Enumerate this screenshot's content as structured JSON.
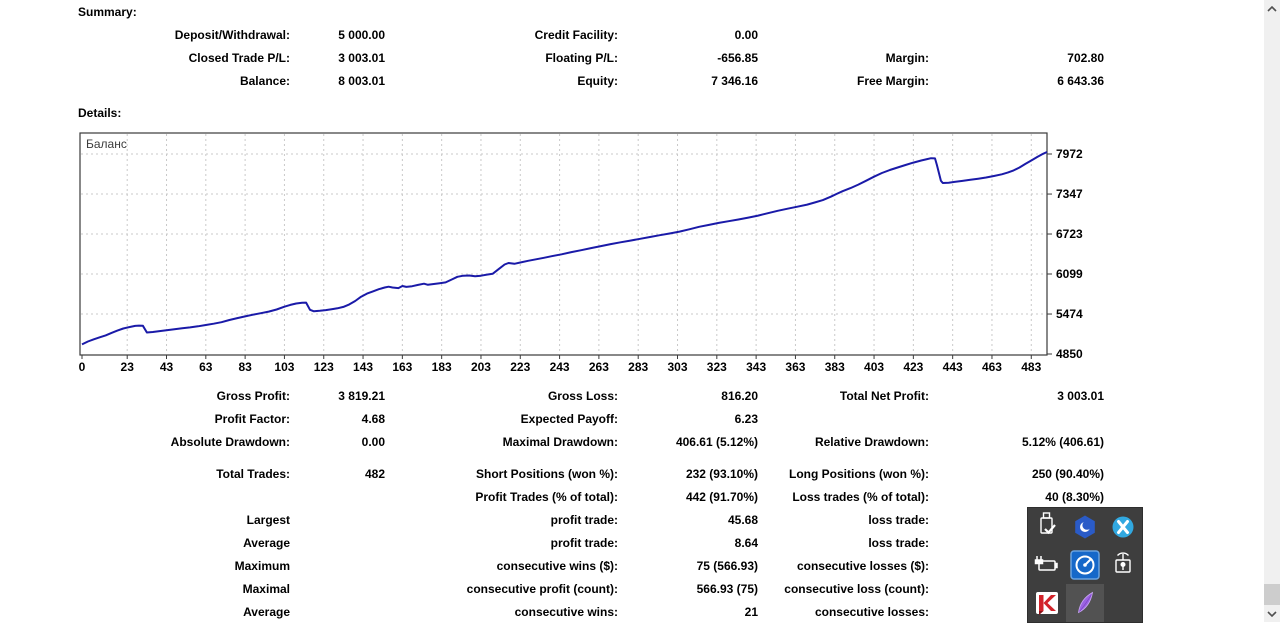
{
  "summary": {
    "title": "Summary:",
    "rows": [
      [
        "Deposit/Withdrawal:",
        "5 000.00",
        "Credit Facility:",
        "0.00",
        "",
        ""
      ],
      [
        "Closed Trade P/L:",
        "3 003.01",
        "Floating P/L:",
        "-656.85",
        "Margin:",
        "702.80"
      ],
      [
        "Balance:",
        "8 003.01",
        "Equity:",
        "7 346.16",
        "Free Margin:",
        "6 643.36"
      ]
    ]
  },
  "details": {
    "title": "Details:",
    "chart_data": {
      "type": "line",
      "title": "",
      "legend": [
        "Баланс"
      ],
      "legend_position": "top-left inside",
      "grid": true,
      "xlabel": "",
      "ylabel": "",
      "xlim": [
        0,
        491
      ],
      "ylim": [
        4850,
        8300
      ],
      "x_ticks": [
        0,
        23,
        43,
        63,
        83,
        103,
        123,
        143,
        163,
        183,
        203,
        223,
        243,
        263,
        283,
        303,
        323,
        343,
        363,
        383,
        403,
        423,
        443,
        463,
        483
      ],
      "y_ticks": [
        4850,
        5474,
        6099,
        6723,
        7347,
        7972
      ],
      "line_color": "#1a1aa8",
      "series": [
        {
          "name": "Баланс",
          "points": [
            [
              0,
              5000
            ],
            [
              3,
              5045
            ],
            [
              6,
              5080
            ],
            [
              9,
              5110
            ],
            [
              12,
              5140
            ],
            [
              15,
              5180
            ],
            [
              18,
              5215
            ],
            [
              21,
              5248
            ],
            [
              24,
              5270
            ],
            [
              27,
              5288
            ],
            [
              29,
              5293
            ],
            [
              31,
              5290
            ],
            [
              33,
              5185
            ],
            [
              36,
              5193
            ],
            [
              39,
              5205
            ],
            [
              43,
              5222
            ],
            [
              47,
              5237
            ],
            [
              51,
              5252
            ],
            [
              55,
              5266
            ],
            [
              59,
              5283
            ],
            [
              63,
              5303
            ],
            [
              67,
              5323
            ],
            [
              71,
              5347
            ],
            [
              75,
              5380
            ],
            [
              79,
              5410
            ],
            [
              83,
              5437
            ],
            [
              87,
              5463
            ],
            [
              91,
              5487
            ],
            [
              95,
              5512
            ],
            [
              99,
              5545
            ],
            [
              103,
              5588
            ],
            [
              106,
              5617
            ],
            [
              109,
              5638
            ],
            [
              112,
              5650
            ],
            [
              114,
              5652
            ],
            [
              116,
              5540
            ],
            [
              118,
              5516
            ],
            [
              121,
              5524
            ],
            [
              124,
              5536
            ],
            [
              127,
              5549
            ],
            [
              130,
              5563
            ],
            [
              133,
              5585
            ],
            [
              136,
              5625
            ],
            [
              139,
              5678
            ],
            [
              142,
              5745
            ],
            [
              145,
              5793
            ],
            [
              148,
              5828
            ],
            [
              151,
              5862
            ],
            [
              154,
              5888
            ],
            [
              156,
              5900
            ],
            [
              158,
              5888
            ],
            [
              161,
              5878
            ],
            [
              163,
              5912
            ],
            [
              165,
              5898
            ],
            [
              168,
              5908
            ],
            [
              171,
              5928
            ],
            [
              174,
              5948
            ],
            [
              176,
              5930
            ],
            [
              179,
              5942
            ],
            [
              182,
              5955
            ],
            [
              185,
              5968
            ],
            [
              188,
              6012
            ],
            [
              191,
              6055
            ],
            [
              194,
              6072
            ],
            [
              197,
              6076
            ],
            [
              200,
              6063
            ],
            [
              203,
              6072
            ],
            [
              206,
              6090
            ],
            [
              209,
              6103
            ],
            [
              212,
              6175
            ],
            [
              215,
              6247
            ],
            [
              217,
              6270
            ],
            [
              220,
              6258
            ],
            [
              223,
              6278
            ],
            [
              227,
              6305
            ],
            [
              231,
              6328
            ],
            [
              235,
              6352
            ],
            [
              239,
              6377
            ],
            [
              244,
              6407
            ],
            [
              249,
              6440
            ],
            [
              254,
              6471
            ],
            [
              259,
              6503
            ],
            [
              264,
              6534
            ],
            [
              269,
              6566
            ],
            [
              274,
              6594
            ],
            [
              279,
              6621
            ],
            [
              284,
              6649
            ],
            [
              289,
              6677
            ],
            [
              294,
              6704
            ],
            [
              299,
              6731
            ],
            [
              304,
              6760
            ],
            [
              309,
              6797
            ],
            [
              314,
              6835
            ],
            [
              319,
              6866
            ],
            [
              324,
              6896
            ],
            [
              329,
              6923
            ],
            [
              334,
              6950
            ],
            [
              339,
              6979
            ],
            [
              344,
              7011
            ],
            [
              349,
              7048
            ],
            [
              354,
              7085
            ],
            [
              359,
              7119
            ],
            [
              364,
              7150
            ],
            [
              369,
              7182
            ],
            [
              373,
              7216
            ],
            [
              377,
              7252
            ],
            [
              381,
              7305
            ],
            [
              384,
              7350
            ],
            [
              387,
              7392
            ],
            [
              391,
              7440
            ],
            [
              395,
              7495
            ],
            [
              399,
              7555
            ],
            [
              403,
              7618
            ],
            [
              407,
              7675
            ],
            [
              411,
              7722
            ],
            [
              415,
              7762
            ],
            [
              419,
              7800
            ],
            [
              423,
              7838
            ],
            [
              427,
              7870
            ],
            [
              430,
              7893
            ],
            [
              432,
              7906
            ],
            [
              434,
              7903
            ],
            [
              435,
              7800
            ],
            [
              437,
              7555
            ],
            [
              438,
              7520
            ],
            [
              441,
              7523
            ],
            [
              444,
              7536
            ],
            [
              448,
              7553
            ],
            [
              452,
              7569
            ],
            [
              456,
              7587
            ],
            [
              460,
              7606
            ],
            [
              464,
              7629
            ],
            [
              468,
              7656
            ],
            [
              471,
              7682
            ],
            [
              474,
              7716
            ],
            [
              477,
              7762
            ],
            [
              480,
              7817
            ],
            [
              483,
              7870
            ],
            [
              486,
              7926
            ],
            [
              489,
              7976
            ],
            [
              491,
              8003
            ]
          ]
        }
      ]
    }
  },
  "stats": {
    "rows_top": [
      [
        "Gross Profit:",
        "3 819.21",
        "Gross Loss:",
        "816.20",
        "Total Net Profit:",
        "3 003.01"
      ],
      [
        "Profit Factor:",
        "4.68",
        "Expected Payoff:",
        "6.23",
        "",
        ""
      ],
      [
        "Absolute Drawdown:",
        "0.00",
        "Maximal Drawdown:",
        "406.61 (5.12%)",
        "Relative Drawdown:",
        "5.12% (406.61)"
      ]
    ],
    "rows_bottom": [
      [
        "Total Trades:",
        "482",
        "Short Positions (won %):",
        "232 (93.10%)",
        "Long Positions (won %):",
        "250 (90.40%)"
      ],
      [
        "",
        "",
        "Profit Trades (% of total):",
        "442 (91.70%)",
        "Loss trades (% of total):",
        "40 (8.30%)"
      ],
      [
        "Largest",
        "",
        "profit trade:",
        "45.68",
        "loss trade:",
        ""
      ],
      [
        "Average",
        "",
        "profit trade:",
        "8.64",
        "loss trade:",
        ""
      ],
      [
        "Maximum",
        "",
        "consecutive wins ($):",
        "75 (566.93)",
        "consecutive losses ($):",
        ""
      ],
      [
        "Maximal",
        "",
        "consecutive profit (count):",
        "566.93 (75)",
        "consecutive loss (count):",
        ""
      ],
      [
        "Average",
        "",
        "consecutive wins:",
        "21",
        "consecutive losses:",
        ""
      ]
    ]
  },
  "tray": {
    "icons": [
      "usb-safely-remove-icon",
      "hexagon-crescent-app-icon",
      "blue-circle-tools-icon",
      "power-battery-icon",
      "network-gauge-icon",
      "hotspot-lock-icon",
      "kaspersky-icon",
      "purple-feather-icon"
    ]
  }
}
